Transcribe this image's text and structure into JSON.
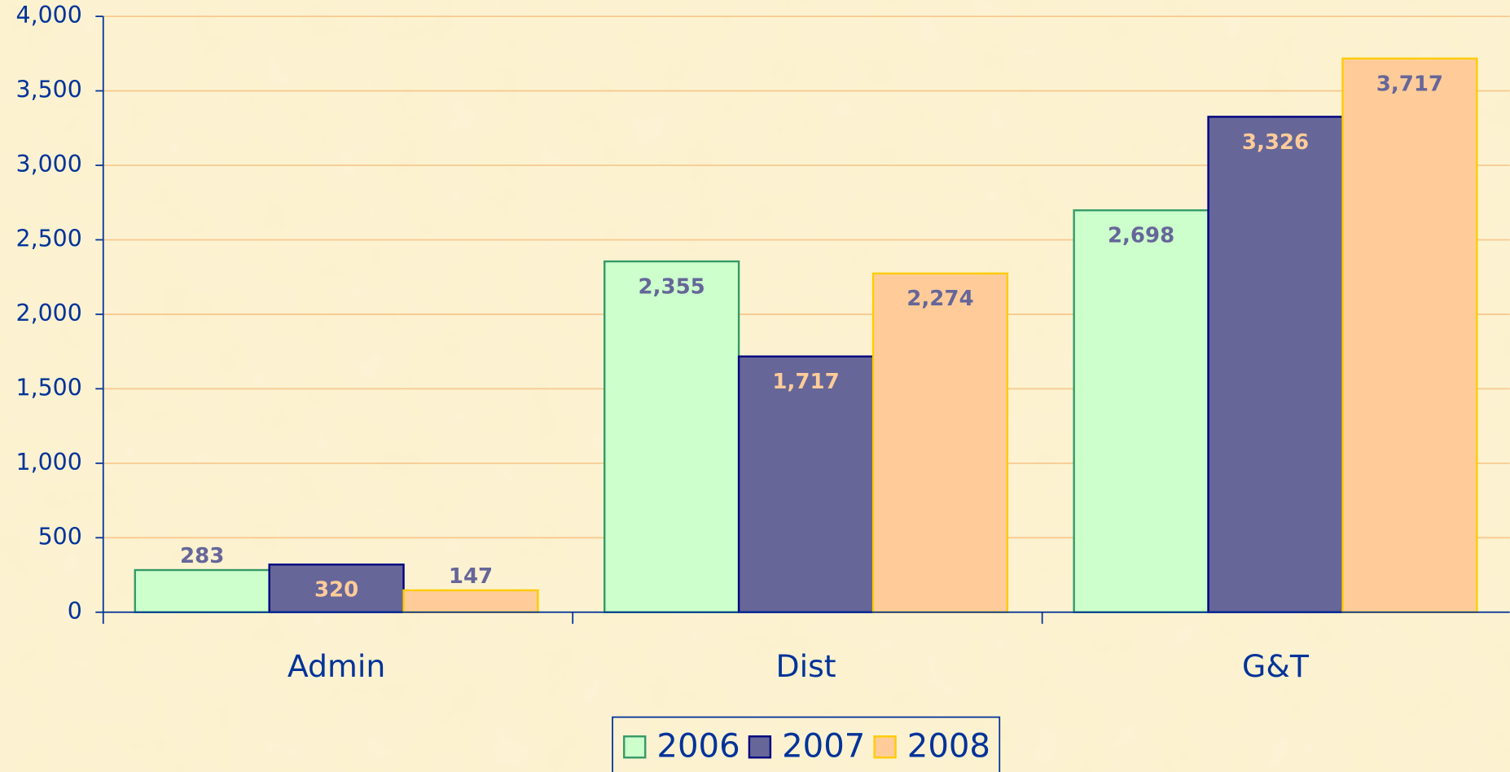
{
  "chart_data": {
    "type": "bar",
    "categories": [
      "Admin",
      "Dist",
      "G&T"
    ],
    "series": [
      {
        "name": "2006",
        "color": "#ccffcc",
        "values": [
          283,
          2355,
          2698
        ],
        "value_labels": [
          "283",
          "2,355",
          "2,698"
        ]
      },
      {
        "name": "2007",
        "color": "#666699",
        "values": [
          320,
          1717,
          3326
        ],
        "value_labels": [
          "320",
          "1,717",
          "3,326"
        ]
      },
      {
        "name": "2008",
        "color": "#ffcc99",
        "values": [
          147,
          2274,
          3717
        ],
        "value_labels": [
          "147",
          "2,274",
          "3,717"
        ]
      }
    ],
    "ylim": [
      0,
      4000
    ],
    "yticks": [
      0,
      500,
      {
        "value": 1000,
        "label": "1,000"
      },
      {
        "value": 1500,
        "label": "1,500"
      },
      {
        "value": 2000,
        "label": "2,000"
      },
      {
        "value": 2500,
        "label": "2,500"
      },
      {
        "value": 3000,
        "label": "3,000"
      },
      {
        "value": 3500,
        "label": "3,500"
      },
      {
        "value": 4000,
        "label": "4,000"
      }
    ],
    "grid": true,
    "legend": "bottom"
  }
}
